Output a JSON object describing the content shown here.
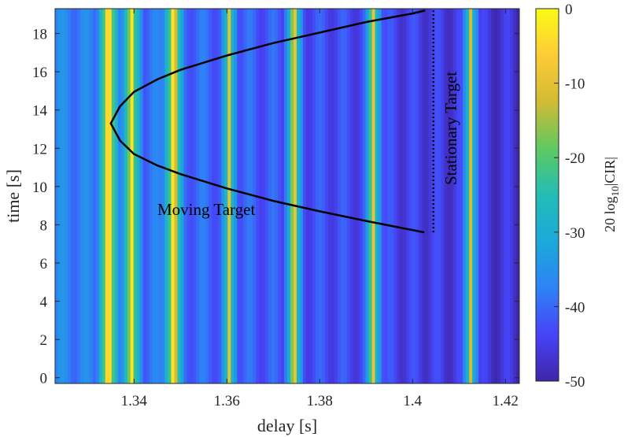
{
  "chart_data": {
    "type": "heatmap",
    "xlabel": "delay [s]",
    "ylabel": "time [s]",
    "xlim": [
      1.323,
      1.423
    ],
    "ylim": [
      -0.3,
      19.3
    ],
    "xticks": [
      1.34,
      1.36,
      1.38,
      1.4,
      1.42
    ],
    "xtick_labels": [
      "1.34",
      "1.36",
      "1.38",
      "1.4",
      "1.42"
    ],
    "yticks": [
      0,
      2,
      4,
      6,
      8,
      10,
      12,
      14,
      16,
      18
    ],
    "ytick_labels": [
      "0",
      "2",
      "4",
      "6",
      "8",
      "10",
      "12",
      "14",
      "16",
      "18"
    ],
    "colorbar": {
      "label": "20 log10|CIR|",
      "label_main": "20 log",
      "label_sub": "10",
      "label_tail": "|CIR|",
      "range": [
        -50,
        0
      ],
      "ticks": [
        0,
        -10,
        -20,
        -30,
        -40,
        -50
      ],
      "tick_labels": [
        "0",
        "-10",
        "-20",
        "-30",
        "-40",
        "-50"
      ],
      "colormap": [
        "#3e26a8",
        "#4743f8",
        "#2e82f7",
        "#1ba9da",
        "#23bcb5",
        "#5ec961",
        "#d2bb34",
        "#fdcc37",
        "#f9fb15"
      ]
    },
    "heatmap_profile": {
      "description_values_dB_vs_delay": true,
      "peaks": [
        {
          "delay": 1.3345,
          "value": 0
        },
        {
          "delay": 1.3395,
          "value": -3
        },
        {
          "delay": 1.3485,
          "value": -2
        },
        {
          "delay": 1.3605,
          "value": -10
        },
        {
          "delay": 1.3745,
          "value": -8
        },
        {
          "delay": 1.3915,
          "value": -9
        },
        {
          "delay": 1.4125,
          "value": -12
        }
      ],
      "floor_left": -37,
      "floor_right": -47
    },
    "moving_target": {
      "label": "Moving Target",
      "delay": [
        1.4025,
        1.39,
        1.38,
        1.37,
        1.36,
        1.35,
        1.345,
        1.34,
        1.337,
        1.335,
        1.337,
        1.34,
        1.345,
        1.35,
        1.36,
        1.37,
        1.38,
        1.39,
        1.4,
        1.4027
      ],
      "time": [
        7.6,
        8.2,
        8.7,
        9.25,
        9.9,
        10.65,
        11.1,
        11.7,
        12.4,
        13.3,
        14.2,
        14.95,
        15.6,
        16.1,
        16.85,
        17.5,
        18.05,
        18.6,
        19.05,
        19.2
      ]
    },
    "stationary_target": {
      "label": "Stationary Target",
      "delay": 1.4045,
      "time_range": [
        7.6,
        19.2
      ],
      "linestyle": "dotted"
    },
    "line_color": "#000000"
  }
}
